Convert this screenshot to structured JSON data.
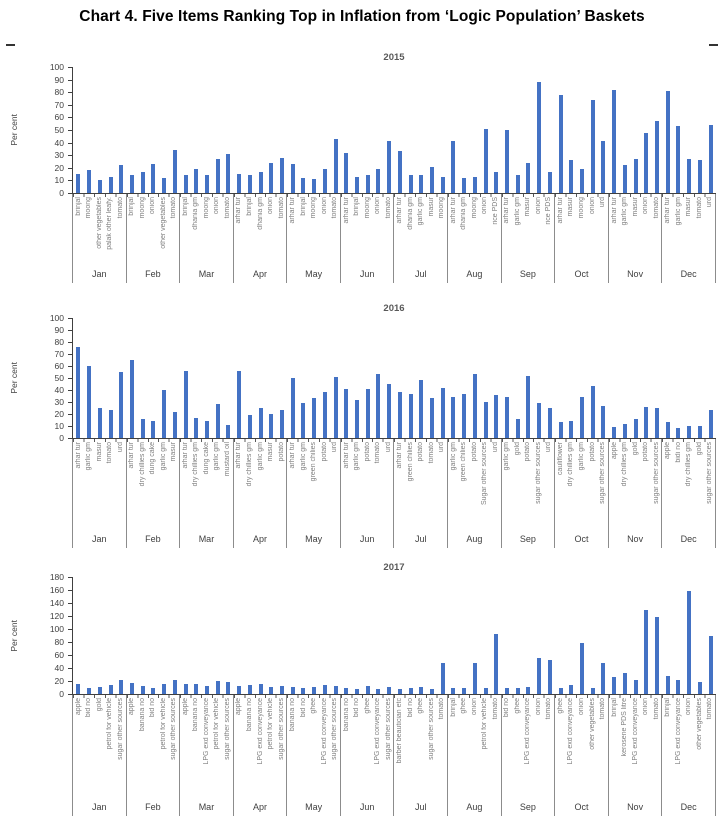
{
  "page": {
    "title": "Chart 4. Five Items Ranking Top in Inflation from ‘Logic Population’ Baskets"
  },
  "chart_data": [
    {
      "type": "bar",
      "title": "2015",
      "ylabel": "Per cent",
      "ylim": [
        0,
        100
      ],
      "ytick_step": 10,
      "bar_color": "#4472c4",
      "grid": false,
      "legend": false,
      "months": [
        {
          "month": "Jan",
          "items": [
            "brinjal",
            "moong",
            "other vegetables",
            "palak other leafy.",
            "tomato"
          ],
          "values": [
            15,
            18,
            10,
            13,
            22
          ]
        },
        {
          "month": "Feb",
          "items": [
            "brinjal",
            "moong",
            "onion",
            "other vegetables",
            "tomato"
          ],
          "values": [
            14,
            17,
            23,
            12,
            34
          ]
        },
        {
          "month": "Mar",
          "items": [
            "brinjal",
            "dhania gm",
            "moong",
            "onion",
            "tomato"
          ],
          "values": [
            14,
            19,
            14,
            27,
            31
          ]
        },
        {
          "month": "Apr",
          "items": [
            "arhar tur",
            "brinjal",
            "dhania gm",
            "onion",
            "tomato"
          ],
          "values": [
            15,
            14,
            17,
            24,
            28
          ]
        },
        {
          "month": "May",
          "items": [
            "arhar tur",
            "brinjal",
            "moong",
            "onion",
            "tomato"
          ],
          "values": [
            23,
            12,
            11,
            19,
            43
          ]
        },
        {
          "month": "Jun",
          "items": [
            "arhar tur",
            "brinjal",
            "moong",
            "onion",
            "tomato"
          ],
          "values": [
            32,
            13,
            14,
            19,
            41
          ]
        },
        {
          "month": "Jul",
          "items": [
            "arhar tur",
            "dhania gm",
            "garlic gm",
            "masur",
            "moong"
          ],
          "values": [
            33,
            14,
            14,
            21,
            13
          ]
        },
        {
          "month": "Aug",
          "items": [
            "arhar tur",
            "dhania gm",
            "moong",
            "onion",
            "rice PDS"
          ],
          "values": [
            41,
            12,
            13,
            51,
            17
          ]
        },
        {
          "month": "Sep",
          "items": [
            "arhar tur",
            "garlic gm",
            "masur",
            "onion",
            "rice PDS"
          ],
          "values": [
            50,
            14,
            24,
            88,
            17
          ]
        },
        {
          "month": "Oct",
          "items": [
            "arhar tur",
            "masur",
            "moong",
            "onion",
            "urd"
          ],
          "values": [
            78,
            26,
            19,
            74,
            41
          ]
        },
        {
          "month": "Nov",
          "items": [
            "arhar tur",
            "garlic gm",
            "masur",
            "onion",
            "tomato"
          ],
          "values": [
            82,
            22,
            27,
            48,
            57
          ]
        },
        {
          "month": "Dec",
          "items": [
            "arhar tur",
            "garlic gm",
            "masur",
            "tomato",
            "urd"
          ],
          "values": [
            81,
            53,
            27,
            26,
            54
          ]
        }
      ]
    },
    {
      "type": "bar",
      "title": "2016",
      "ylabel": "Per cent",
      "ylim": [
        0,
        100
      ],
      "ytick_step": 10,
      "bar_color": "#4472c4",
      "grid": false,
      "legend": false,
      "months": [
        {
          "month": "Jan",
          "items": [
            "arhar tur",
            "garlic gm",
            "masur",
            "tomato",
            "urd"
          ],
          "values": [
            76,
            60,
            25,
            23,
            55
          ]
        },
        {
          "month": "Feb",
          "items": [
            "arhar tur",
            "dry chillies gm",
            "dung cake",
            "garlic gm",
            "masur"
          ],
          "values": [
            65,
            16,
            14,
            40,
            22
          ]
        },
        {
          "month": "Mar",
          "items": [
            "arhar tur",
            "dry chillies gm",
            "dung cake",
            "garlic gm",
            "mustard oil"
          ],
          "values": [
            56,
            17,
            14,
            28,
            11
          ]
        },
        {
          "month": "Apr",
          "items": [
            "arhar tur",
            "dry chillies gm",
            "garlic gm",
            "masur",
            "potato"
          ],
          "values": [
            56,
            19,
            25,
            20,
            23
          ]
        },
        {
          "month": "May",
          "items": [
            "arhar tur",
            "garlic gm",
            "green chilies",
            "potato",
            "urd"
          ],
          "values": [
            50,
            29,
            33,
            38,
            51
          ]
        },
        {
          "month": "Jun",
          "items": [
            "arhar tur",
            "garlic gm",
            "potato",
            "tomato",
            "urd"
          ],
          "values": [
            41,
            32,
            41,
            53,
            45
          ]
        },
        {
          "month": "Jul",
          "items": [
            "arhar tur",
            "green chilies",
            "potato",
            "tomato",
            "urd"
          ],
          "values": [
            38,
            37,
            48,
            33,
            42
          ]
        },
        {
          "month": "Aug",
          "items": [
            "garlic gm",
            "green chilies",
            "potato",
            "Sugar other sources",
            "urd"
          ],
          "values": [
            34,
            37,
            53,
            30,
            36
          ]
        },
        {
          "month": "Sep",
          "items": [
            "garlic gm",
            "gold",
            "potato",
            "sugar other sources",
            "urd"
          ],
          "values": [
            34,
            16,
            52,
            29,
            25
          ]
        },
        {
          "month": "Oct",
          "items": [
            "cauliflower",
            "dry chillies gm",
            "garlic gm",
            "potato",
            "sugar other sources"
          ],
          "values": [
            13,
            14,
            34,
            43,
            27
          ]
        },
        {
          "month": "Nov",
          "items": [
            "apple",
            "dry chillies gm",
            "gold",
            "potato",
            "sugar other sources"
          ],
          "values": [
            9,
            12,
            16,
            26,
            25
          ]
        },
        {
          "month": "Dec",
          "items": [
            "apple",
            "bidi no",
            "dry chillies gm",
            "gold",
            "sugar other sources"
          ],
          "values": [
            13,
            8,
            10,
            10,
            23
          ]
        }
      ]
    },
    {
      "type": "bar",
      "title": "2017",
      "ylabel": "Per cent",
      "ylim": [
        0,
        180
      ],
      "ytick_step": 20,
      "bar_color": "#4472c4",
      "grid": false,
      "legend": false,
      "months": [
        {
          "month": "Jan",
          "items": [
            "apple",
            "bid no",
            "gold",
            "petrol for vehicle",
            "sugar other sources"
          ],
          "values": [
            15,
            10,
            11,
            14,
            21
          ]
        },
        {
          "month": "Feb",
          "items": [
            "apple",
            "banana no",
            "bid no",
            "petrol for vehicle",
            "sugar other sources"
          ],
          "values": [
            17,
            13,
            10,
            16,
            21
          ]
        },
        {
          "month": "Mar",
          "items": [
            "apple",
            "banana no",
            "LPG exd conveyance",
            "petrol for vehicle",
            "sugar other sources"
          ],
          "values": [
            16,
            15,
            12,
            20,
            19
          ]
        },
        {
          "month": "Apr",
          "items": [
            "apple",
            "banana no",
            "LPG exd conveyance",
            "petrol for vehicle",
            "sugar other sources"
          ],
          "values": [
            12,
            14,
            15,
            11,
            13
          ]
        },
        {
          "month": "May",
          "items": [
            "banana no",
            "bid no",
            "ghee",
            "LPG exd conveyance",
            "sugar other sources"
          ],
          "values": [
            11,
            10,
            11,
            14,
            12
          ]
        },
        {
          "month": "Jun",
          "items": [
            "banana no",
            "bid no",
            "ghee",
            "LPG exd conveyance",
            "sugar other sources"
          ],
          "values": [
            10,
            8,
            12,
            7,
            11
          ]
        },
        {
          "month": "Jul",
          "items": [
            "barber beautician etc",
            "bid no",
            "ghee",
            "sugar other sources",
            "tomato"
          ],
          "values": [
            7,
            9,
            11,
            8,
            48
          ]
        },
        {
          "month": "Aug",
          "items": [
            "brinjal",
            "ghee",
            "onion",
            "petrol for vehicle",
            "tomato"
          ],
          "values": [
            9,
            9,
            47,
            9,
            92
          ]
        },
        {
          "month": "Sep",
          "items": [
            "bid no",
            "ghee",
            "LPG exd conveyance",
            "onion",
            "tomato"
          ],
          "values": [
            9,
            9,
            11,
            56,
            52
          ]
        },
        {
          "month": "Oct",
          "items": [
            "ghee",
            "LPG exd conveyance",
            "onion",
            "other vegetables",
            "tomato"
          ],
          "values": [
            9,
            14,
            79,
            10,
            47
          ]
        },
        {
          "month": "Nov",
          "items": [
            "brinjal",
            "kerosene PDS litre",
            "LPG exd conveyance",
            "onion",
            "tomato"
          ],
          "values": [
            26,
            33,
            22,
            129,
            118
          ]
        },
        {
          "month": "Dec",
          "items": [
            "brinjal",
            "LPG exd conveyance",
            "onion",
            "other vegetables",
            "tomato"
          ],
          "values": [
            27,
            21,
            158,
            18,
            90
          ]
        }
      ]
    }
  ]
}
